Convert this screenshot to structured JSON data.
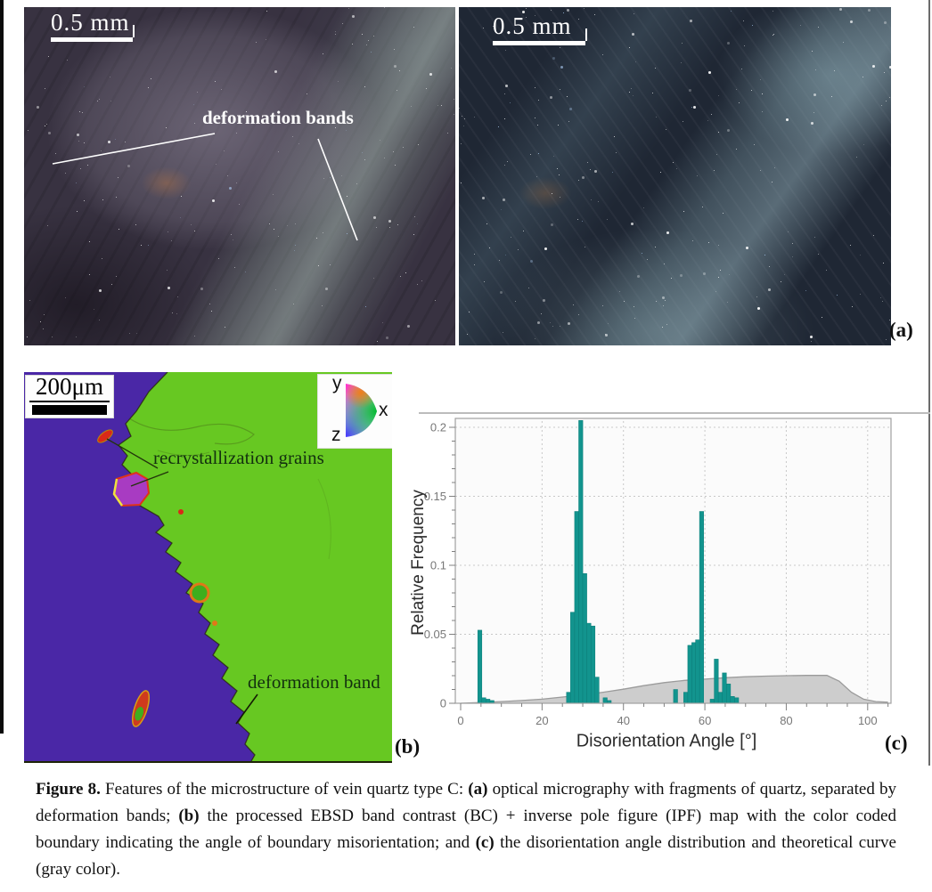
{
  "panel_a": {
    "label": "(a)",
    "left_micrograph": {
      "scale_bar": "0.5 mm",
      "annotation": "deformation bands"
    },
    "right_micrograph": {
      "scale_bar": "0.5 mm"
    }
  },
  "panel_b": {
    "label": "(b)",
    "scale_bar": "200μm",
    "ipf_axes": {
      "x": "x",
      "y": "y",
      "z": "z"
    },
    "annotations": {
      "recrystallization": "recrystallization grains",
      "deformation": "deformation band"
    },
    "colors": {
      "matrix_green": "#67c822",
      "band_purple": "#4a27a6",
      "grain_magenta": "#a83bc2",
      "boundary_red": "#d92918",
      "boundary_yellow": "#efe23d",
      "boundary_orange": "#e07818",
      "grain_green": "#3fae1d"
    }
  },
  "panel_c": {
    "label": "(c)"
  },
  "chart_data": {
    "type": "bar",
    "title": "",
    "xlabel": "Disorientation Angle [°]",
    "ylabel": "Relative Frequency",
    "xlim": [
      0,
      105.5
    ],
    "ylim": [
      0,
      0.207
    ],
    "xticks": [
      0,
      20,
      40,
      60,
      80,
      100
    ],
    "yticks": [
      0,
      0.05,
      0.1,
      0.15,
      0.2
    ],
    "x_minor_step": 5,
    "y_minor_step": 0.01,
    "grid": "dotted",
    "legend_position": "none",
    "bar_color": "#12948e",
    "curve_color": "#cdcdcd",
    "series": [
      {
        "name": "disorientation angle distribution",
        "type": "bar",
        "bin_width": 1,
        "points": [
          [
            4.7,
            0.053
          ],
          [
            5.7,
            0.004
          ],
          [
            6.7,
            0.003
          ],
          [
            7.7,
            0.002
          ],
          [
            26.5,
            0.008
          ],
          [
            27.5,
            0.066
          ],
          [
            28.5,
            0.139
          ],
          [
            29.5,
            0.205
          ],
          [
            30.5,
            0.094
          ],
          [
            31.5,
            0.058
          ],
          [
            32.5,
            0.056
          ],
          [
            33.5,
            0.019
          ],
          [
            35.5,
            0.004
          ],
          [
            36.5,
            0.002
          ],
          [
            52.8,
            0.01
          ],
          [
            55.3,
            0.008
          ],
          [
            56.3,
            0.042
          ],
          [
            57.3,
            0.044
          ],
          [
            58.2,
            0.046
          ],
          [
            59.2,
            0.139
          ],
          [
            61.8,
            0.003
          ],
          [
            62.8,
            0.032
          ],
          [
            63.8,
            0.008
          ],
          [
            64.8,
            0.022
          ],
          [
            65.8,
            0.014
          ],
          [
            66.8,
            0.005
          ],
          [
            67.8,
            0.004
          ]
        ]
      },
      {
        "name": "theoretical curve (gray color)",
        "type": "area",
        "points": [
          [
            0,
            0
          ],
          [
            5,
            0.0005
          ],
          [
            10,
            0.0012
          ],
          [
            15,
            0.002
          ],
          [
            20,
            0.003
          ],
          [
            25,
            0.0045
          ],
          [
            30,
            0.006
          ],
          [
            35,
            0.008
          ],
          [
            40,
            0.0102
          ],
          [
            45,
            0.0128
          ],
          [
            50,
            0.015
          ],
          [
            55,
            0.0166
          ],
          [
            60,
            0.0175
          ],
          [
            65,
            0.0185
          ],
          [
            70,
            0.0192
          ],
          [
            75,
            0.0197
          ],
          [
            80,
            0.02
          ],
          [
            85,
            0.0202
          ],
          [
            90,
            0.0202
          ],
          [
            93,
            0.016
          ],
          [
            96,
            0.008
          ],
          [
            99,
            0.003
          ],
          [
            102,
            0.0012
          ],
          [
            105,
            0.0008
          ]
        ]
      }
    ]
  },
  "caption": {
    "segments": [
      {
        "text": "Figure 8. ",
        "bold": true
      },
      {
        "text": "Features of the microstructure of vein quartz type C: ",
        "bold": false
      },
      {
        "text": "(a)",
        "bold": true
      },
      {
        "text": " optical micrography with fragments of quartz, separated by deformation bands; ",
        "bold": false
      },
      {
        "text": "(b)",
        "bold": true
      },
      {
        "text": " the processed EBSD band contrast (BC) + inverse pole figure (IPF) map with the color coded boundary indicating the angle of boundary misorientation; and ",
        "bold": false
      },
      {
        "text": "(c)",
        "bold": true
      },
      {
        "text": " the disorientation angle distribution and theoretical curve (gray color).",
        "bold": false
      }
    ]
  }
}
